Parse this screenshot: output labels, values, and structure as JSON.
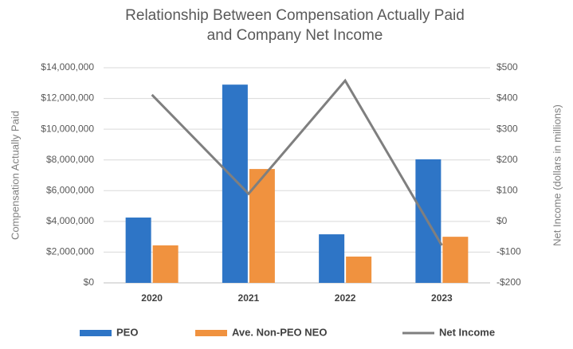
{
  "chart_data": {
    "type": "bar",
    "title": "Relationship Between Compensation Actually Paid",
    "subtitle": "and Company Net Income",
    "y_label": "Compensation Actually Paid",
    "y2_label": "Net Income (dollars in millions)",
    "categories": [
      "2020",
      "2021",
      "2022",
      "2023"
    ],
    "series": [
      {
        "name": "PEO",
        "color": "#2e75c6",
        "type": "bar",
        "values": [
          4250000,
          12900000,
          3160000,
          8040000
        ]
      },
      {
        "name": "Ave. Non-PEO NEO",
        "color": "#f0923f",
        "type": "bar",
        "values": [
          2440000,
          7410000,
          1710000,
          3000000
        ]
      },
      {
        "name": "Net Income",
        "color": "#7f7f7f",
        "type": "line",
        "axis": "y2",
        "values": [
          412,
          90,
          458,
          -78
        ]
      }
    ],
    "ylim": [
      0,
      14000000
    ],
    "yticks": [
      {
        "value": 0,
        "label": "$0"
      },
      {
        "value": 2000000,
        "label": "$2,000,000"
      },
      {
        "value": 4000000,
        "label": "$4,000,000"
      },
      {
        "value": 6000000,
        "label": "$6,000,000"
      },
      {
        "value": 8000000,
        "label": "$8,000,000"
      },
      {
        "value": 10000000,
        "label": "$10,000,000"
      },
      {
        "value": 12000000,
        "label": "$12,000,000"
      },
      {
        "value": 14000000,
        "label": "$14,000,000"
      }
    ],
    "y2lim": [
      -200,
      500
    ],
    "y2ticks": [
      {
        "value": -200,
        "label": "-$200"
      },
      {
        "value": -100,
        "label": "-$100"
      },
      {
        "value": 0,
        "label": "$0"
      },
      {
        "value": 100,
        "label": "$100"
      },
      {
        "value": 200,
        "label": "$200"
      },
      {
        "value": 300,
        "label": "$300"
      },
      {
        "value": 400,
        "label": "$400"
      },
      {
        "value": 500,
        "label": "$500"
      }
    ],
    "grid": true,
    "legend": "bottom"
  }
}
